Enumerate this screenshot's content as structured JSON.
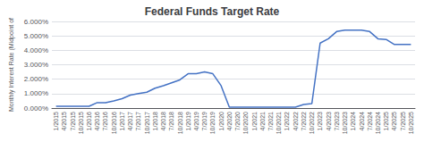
{
  "chart_data": {
    "type": "line",
    "title": "Federal Funds Target Rate",
    "y_label": "Monthly Interest Rate (Midpoint of",
    "categories": [
      "1/2015",
      "4/2015",
      "7/2015",
      "10/2015",
      "1/2016",
      "4/2016",
      "7/2016",
      "10/2016",
      "1/2017",
      "4/2017",
      "7/2017",
      "10/2017",
      "1/2018",
      "4/2018",
      "7/2018",
      "10/2018",
      "1/2019",
      "4/2019",
      "7/2019",
      "10/2019",
      "1/2020",
      "4/2020",
      "7/2020",
      "10/2020",
      "1/2021",
      "4/2021",
      "7/2021",
      "10/2021",
      "1/2022",
      "4/2022",
      "7/2022",
      "10/2022",
      "1/2023",
      "4/2023",
      "7/2023",
      "10/2023",
      "1/2024",
      "4/2024",
      "7/2024",
      "10/2024",
      "1/2025",
      "4/2025",
      "7/2025",
      "10/2025"
    ],
    "values": [
      0.00125,
      0.00125,
      0.00125,
      0.00125,
      0.00125,
      0.00375,
      0.00375,
      0.005,
      0.0065,
      0.009,
      0.01,
      0.011,
      0.01375,
      0.0155,
      0.0175,
      0.0195,
      0.02375,
      0.02375,
      0.025,
      0.02375,
      0.0155,
      0.000625,
      0.000625,
      0.000625,
      0.000625,
      0.000625,
      0.000625,
      0.000625,
      0.000625,
      0.000625,
      0.0025,
      0.003125,
      0.045,
      0.048,
      0.053,
      0.054,
      0.054,
      0.054,
      0.053,
      0.048,
      0.0475,
      0.044,
      0.044,
      0.044
    ],
    "color": "#4472C4",
    "ylim": [
      0,
      0.06
    ],
    "yticks": [
      {
        "value": 0.0,
        "label": "0.000%"
      },
      {
        "value": 0.01,
        "label": "1.000%"
      },
      {
        "value": 0.02,
        "label": "2.000%"
      },
      {
        "value": 0.03,
        "label": "3.000%"
      },
      {
        "value": 0.04,
        "label": "4.000%"
      },
      {
        "value": 0.05,
        "label": "5.000%"
      },
      {
        "value": 0.06,
        "label": "6.000%"
      }
    ],
    "grid": true
  }
}
